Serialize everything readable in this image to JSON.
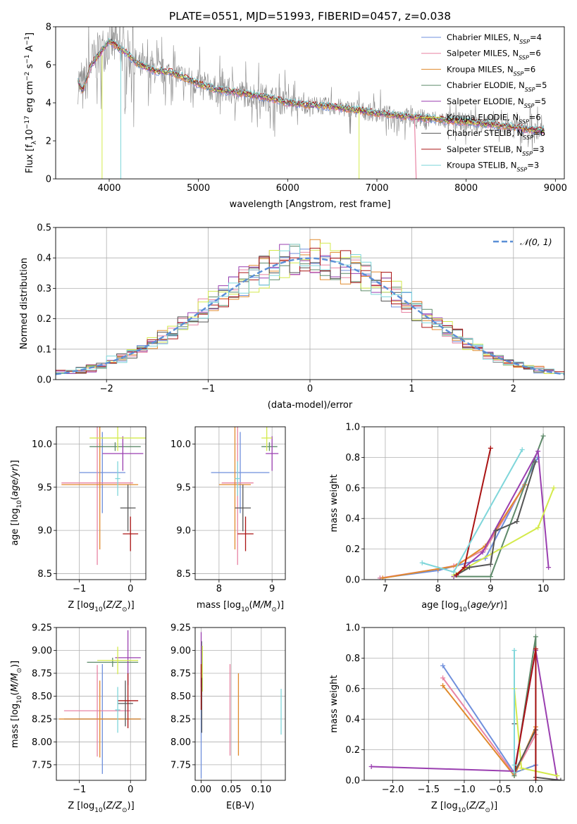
{
  "colors": {
    "chabrier_miles": "#6f8fdc",
    "salpeter_miles": "#e884a4",
    "kroupa_miles": "#e08a2c",
    "chabrier_elodie": "#5e8a6a",
    "salpeter_elodie": "#9a3fb0",
    "kroupa_elodie": "#d4ea4c",
    "chabrier_stelib": "#555555",
    "salpeter_stelib": "#aa1414",
    "kroupa_stelib": "#7fd6da",
    "data_grey": "#888888",
    "gaussian": "#5b8fd6"
  },
  "chart_data": [
    {
      "id": "spectrum",
      "type": "line",
      "title": "PLATE=0551, MJD=51993, FIBERID=0457, z=0.038",
      "xlabel": "wavelength [Angstrom, rest frame]",
      "ylabel": "Flux [f_λ10^-17 erg cm^-2 s^-1 A^-1]",
      "xlim": [
        3400,
        9100
      ],
      "ylim": [
        0,
        8
      ],
      "xticks": [
        "4000",
        "5000",
        "6000",
        "7000",
        "8000",
        "9000"
      ],
      "yticks": [
        "0",
        "2",
        "4",
        "6",
        "8"
      ],
      "grid": false,
      "legend_position": "top-right",
      "legend": [
        {
          "main": "Chabrier MILES, N",
          "sub": "SSP",
          "tail": "=4"
        },
        {
          "main": "Salpeter MILES, N",
          "sub": "SSP",
          "tail": "=6"
        },
        {
          "main": "Kroupa MILES, N",
          "sub": "SSP",
          "tail": "=6"
        },
        {
          "main": "Chabrier ELODIE, N",
          "sub": "SSP",
          "tail": "=5"
        },
        {
          "main": "Salpeter ELODIE, N",
          "sub": "SSP",
          "tail": "=5"
        },
        {
          "main": "Kroupa ELODIE, N",
          "sub": "SSP",
          "tail": "=6"
        },
        {
          "main": "Chabrier STELIB, N",
          "sub": "SSP",
          "tail": "=6"
        },
        {
          "main": "Salpeter STELIB, N",
          "sub": "SSP",
          "tail": "=3"
        },
        {
          "main": "Kroupa STELIB, N",
          "sub": "SSP",
          "tail": "=3"
        }
      ],
      "continuum": {
        "x": [
          3650,
          3700,
          3800,
          3900,
          4000,
          4100,
          4200,
          4300,
          4500,
          4700,
          5000,
          5200,
          5500,
          5800,
          6000,
          6200,
          6500,
          6800,
          7000,
          7300,
          7600,
          8000,
          8400,
          8700,
          8900
        ],
        "y": [
          5.2,
          4.6,
          6.0,
          6.6,
          7.3,
          6.9,
          6.6,
          6.1,
          5.7,
          5.6,
          5.0,
          4.7,
          4.5,
          4.25,
          4.0,
          3.9,
          3.8,
          3.6,
          3.45,
          3.3,
          3.15,
          3.0,
          2.8,
          2.6,
          2.5
        ]
      }
    },
    {
      "id": "residual_histogram",
      "type": "histogram",
      "xlabel": "(data-model)/error",
      "ylabel": "Normed distribution",
      "xlim": [
        -2.5,
        2.5
      ],
      "ylim": [
        0,
        0.5
      ],
      "xticks": [
        "−2",
        "−1",
        "0",
        "1",
        "2"
      ],
      "yticks": [
        "0.0",
        "0.1",
        "0.2",
        "0.3",
        "0.4",
        "0.5"
      ],
      "grid": true,
      "legend_position": "top-right",
      "legend": [
        "𝒩(0, 1)"
      ],
      "bin_width": 0.1
    },
    {
      "id": "age_vs_Z",
      "type": "errorbar",
      "xlabel": "Z [log10(Z/Z⊙)]",
      "ylabel": "age  [log10(age/yr)]",
      "xlim": [
        -1.45,
        0.3
      ],
      "ylim": [
        8.43,
        10.2
      ],
      "xticks": [
        "−1",
        "0"
      ],
      "yticks": [
        "8.5",
        "9.0",
        "9.5",
        "10.0"
      ],
      "grid": true,
      "points": [
        {
          "series": "chabrier_miles",
          "x": -0.55,
          "xerr": 0.45,
          "y": 9.67,
          "yerr": 0.47
        },
        {
          "series": "salpeter_miles",
          "x": -0.65,
          "xerr": 0.7,
          "y": 9.55,
          "yerr": 0.95
        },
        {
          "series": "kroupa_miles",
          "x": -0.6,
          "xerr": 0.75,
          "y": 9.53,
          "yerr": 0.75
        },
        {
          "series": "chabrier_elodie",
          "x": -0.3,
          "xerr": 0.5,
          "y": 9.97,
          "yerr": 0.05
        },
        {
          "series": "salpeter_elodie",
          "x": -0.15,
          "xerr": 0.4,
          "y": 9.89,
          "yerr": 0.2
        },
        {
          "series": "kroupa_elodie",
          "x": -0.25,
          "xerr": 0.55,
          "y": 10.07,
          "yerr": 0.15
        },
        {
          "series": "chabrier_stelib",
          "x": -0.05,
          "xerr": 0.15,
          "y": 9.26,
          "yerr": 0.27
        },
        {
          "series": "salpeter_stelib",
          "x": 0.0,
          "xerr": 0.15,
          "y": 8.96,
          "yerr": 0.2
        },
        {
          "series": "kroupa_stelib",
          "x": -0.25,
          "xerr": 0.05,
          "y": 9.6,
          "yerr": 0.2
        }
      ]
    },
    {
      "id": "age_vs_mass",
      "type": "errorbar",
      "xlabel": "mass [log10(M/M⊙)]",
      "ylabel": "",
      "xlim": [
        7.55,
        9.25
      ],
      "ylim": [
        8.43,
        10.2
      ],
      "xticks": [
        "8",
        "9"
      ],
      "yticks": [
        "8.5",
        "9.0",
        "9.5",
        "10.0"
      ],
      "grid": true,
      "points": [
        {
          "series": "chabrier_miles",
          "x": 8.4,
          "xerr": 0.55,
          "y": 9.67,
          "yerr": 0.47
        },
        {
          "series": "salpeter_miles",
          "x": 8.35,
          "xerr": 0.3,
          "y": 9.55,
          "yerr": 0.95
        },
        {
          "series": "kroupa_miles",
          "x": 8.3,
          "xerr": 0.3,
          "y": 9.53,
          "yerr": 0.75
        },
        {
          "series": "chabrier_elodie",
          "x": 8.95,
          "xerr": 0.15,
          "y": 9.97,
          "yerr": 0.05
        },
        {
          "series": "salpeter_elodie",
          "x": 9.0,
          "xerr": 0.12,
          "y": 9.89,
          "yerr": 0.2
        },
        {
          "series": "kroupa_elodie",
          "x": 8.9,
          "xerr": 0.1,
          "y": 10.07,
          "yerr": 0.15
        },
        {
          "series": "chabrier_stelib",
          "x": 8.45,
          "xerr": 0.15,
          "y": 9.26,
          "yerr": 0.27
        },
        {
          "series": "salpeter_stelib",
          "x": 8.5,
          "xerr": 0.15,
          "y": 8.96,
          "yerr": 0.2
        },
        {
          "series": "kroupa_stelib",
          "x": 8.35,
          "xerr": 0.05,
          "y": 9.6,
          "yerr": 0.2
        }
      ]
    },
    {
      "id": "mass_weight_vs_age",
      "type": "line",
      "xlabel": "age  [log10(age/yr)]",
      "ylabel": "mass weight",
      "xlim": [
        6.6,
        10.4
      ],
      "ylim": [
        0,
        1.0
      ],
      "xticks": [
        "7",
        "8",
        "9",
        "10"
      ],
      "yticks": [
        "0.0",
        "0.2",
        "0.4",
        "0.6",
        "0.8",
        "1.0"
      ],
      "grid": true,
      "series": [
        {
          "key": "chabrier_miles",
          "x": [
            6.9,
            8.0,
            8.9,
            9.9
          ],
          "y": [
            0.01,
            0.06,
            0.14,
            0.8
          ]
        },
        {
          "key": "salpeter_miles",
          "x": [
            6.9,
            8.0,
            8.3,
            8.9,
            9.65
          ],
          "y": [
            0.01,
            0.07,
            0.09,
            0.2,
            0.62
          ]
        },
        {
          "key": "kroupa_miles",
          "x": [
            6.95,
            8.0,
            8.35,
            8.9,
            9.65
          ],
          "y": [
            0.01,
            0.07,
            0.09,
            0.22,
            0.62
          ]
        },
        {
          "key": "chabrier_elodie",
          "x": [
            8.3,
            9.0,
            10.0
          ],
          "y": [
            0.02,
            0.02,
            0.94
          ]
        },
        {
          "key": "salpeter_elodie",
          "x": [
            8.3,
            8.85,
            9.9,
            10.1
          ],
          "y": [
            0.02,
            0.18,
            0.84,
            0.08
          ]
        },
        {
          "key": "kroupa_elodie",
          "x": [
            8.3,
            9.9,
            10.2
          ],
          "y": [
            0.03,
            0.34,
            0.6
          ]
        },
        {
          "key": "chabrier_stelib",
          "x": [
            8.35,
            8.6,
            9.0,
            9.1,
            9.5,
            9.85
          ],
          "y": [
            0.03,
            0.08,
            0.1,
            0.32,
            0.38,
            0.77
          ]
        },
        {
          "key": "salpeter_stelib",
          "x": [
            8.35,
            8.5,
            9.0
          ],
          "y": [
            0.03,
            0.08,
            0.86
          ]
        },
        {
          "key": "kroupa_stelib",
          "x": [
            7.7,
            8.3,
            9.6
          ],
          "y": [
            0.11,
            0.05,
            0.85
          ]
        }
      ]
    },
    {
      "id": "mass_vs_Z",
      "type": "errorbar",
      "xlabel": "Z [log10(Z/Z⊙)]",
      "ylabel": "mass [log10(M/M⊙)]",
      "xlim": [
        -1.45,
        0.3
      ],
      "ylim": [
        7.58,
        9.25
      ],
      "xticks": [
        "−1",
        "0"
      ],
      "yticks": [
        "7.75",
        "8.00",
        "8.25",
        "8.50",
        "8.75",
        "9.00",
        "9.25"
      ],
      "grid": true,
      "points": [
        {
          "series": "chabrier_miles",
          "x": -0.55,
          "xerr": 0.75,
          "y": 8.25,
          "yerr": 0.6
        },
        {
          "series": "salpeter_miles",
          "x": -0.65,
          "xerr": 0.65,
          "y": 8.34,
          "yerr": 0.5
        },
        {
          "series": "kroupa_miles",
          "x": -0.6,
          "xerr": 0.8,
          "y": 8.25,
          "yerr": 0.42
        },
        {
          "series": "chabrier_elodie",
          "x": -0.35,
          "xerr": 0.5,
          "y": 8.87,
          "yerr": 0.05
        },
        {
          "series": "salpeter_elodie",
          "x": -0.05,
          "xerr": 0.25,
          "y": 8.92,
          "yerr": 0.3
        },
        {
          "series": "kroupa_elodie",
          "x": -0.25,
          "xerr": 0.4,
          "y": 8.89,
          "yerr": 0.15
        },
        {
          "series": "chabrier_stelib",
          "x": -0.1,
          "xerr": 0.15,
          "y": 8.42,
          "yerr": 0.25
        },
        {
          "series": "salpeter_stelib",
          "x": -0.05,
          "xerr": 0.2,
          "y": 8.45,
          "yerr": 0.3
        },
        {
          "series": "kroupa_stelib",
          "x": -0.25,
          "xerr": 0.05,
          "y": 8.35,
          "yerr": 0.25
        }
      ]
    },
    {
      "id": "mass_vs_EBV",
      "type": "errorbar",
      "xlabel": "E(B-V)",
      "ylabel": "",
      "xlim": [
        -0.01,
        0.14
      ],
      "ylim": [
        7.58,
        9.25
      ],
      "xticks": [
        "0.00",
        "0.05",
        "0.10"
      ],
      "yticks": [
        "7.75",
        "8.00",
        "8.25",
        "8.50",
        "8.75",
        "9.00",
        "9.25"
      ],
      "grid": true,
      "points": [
        {
          "series": "chabrier_miles",
          "x": 0.0,
          "xerr": 0,
          "y": 8.15,
          "yerr": 0.55
        },
        {
          "series": "salpeter_miles",
          "x": 0.048,
          "xerr": 0,
          "y": 8.35,
          "yerr": 0.5
        },
        {
          "series": "kroupa_miles",
          "x": 0.062,
          "xerr": 0,
          "y": 8.3,
          "yerr": 0.45
        },
        {
          "series": "chabrier_elodie",
          "x": 0.001,
          "xerr": 0,
          "y": 8.8,
          "yerr": 0.3
        },
        {
          "series": "salpeter_elodie",
          "x": 0.0,
          "xerr": 0,
          "y": 8.9,
          "yerr": 0.3
        },
        {
          "series": "kroupa_elodie",
          "x": 0.002,
          "xerr": 0,
          "y": 8.8,
          "yerr": 0.25
        },
        {
          "series": "chabrier_stelib",
          "x": 0.001,
          "xerr": 0,
          "y": 8.4,
          "yerr": 0.3
        },
        {
          "series": "salpeter_stelib",
          "x": 0.0,
          "xerr": 0,
          "y": 8.6,
          "yerr": 0.25
        },
        {
          "series": "kroupa_stelib",
          "x": 0.133,
          "xerr": 0,
          "y": 8.33,
          "yerr": 0.25
        }
      ]
    },
    {
      "id": "mass_weight_vs_Z",
      "type": "line",
      "xlabel": "Z [log10(Z/Z⊙)]",
      "ylabel": "mass weight",
      "xlim": [
        -2.4,
        0.4
      ],
      "ylim": [
        0,
        1.0
      ],
      "xticks": [
        "−2.0",
        "−1.5",
        "−1.0",
        "−0.5",
        "0.0"
      ],
      "yticks": [
        "0.0",
        "0.2",
        "0.4",
        "0.6",
        "0.8",
        "1.0"
      ],
      "grid": true,
      "series": [
        {
          "key": "chabrier_miles",
          "x": [
            -1.3,
            -0.3,
            0.0
          ],
          "y": [
            0.75,
            0.05,
            0.1
          ]
        },
        {
          "key": "salpeter_miles",
          "x": [
            -1.3,
            -0.3,
            0.0
          ],
          "y": [
            0.67,
            0.04,
            0.3
          ]
        },
        {
          "key": "kroupa_miles",
          "x": [
            -1.3,
            -0.3,
            0.0
          ],
          "y": [
            0.62,
            0.03,
            0.35
          ]
        },
        {
          "key": "chabrier_elodie",
          "x": [
            -0.3,
            0.0,
            0.0
          ],
          "y": [
            0.03,
            0.94,
            0.0
          ]
        },
        {
          "key": "salpeter_elodie",
          "x": [
            -2.3,
            -0.3,
            0.0,
            0.3
          ],
          "y": [
            0.09,
            0.06,
            0.85,
            0.0
          ]
        },
        {
          "key": "kroupa_elodie",
          "x": [
            -0.3,
            -0.2,
            0.3
          ],
          "y": [
            0.6,
            0.08,
            0.03
          ]
        },
        {
          "key": "chabrier_stelib",
          "x": [
            -0.3,
            -0.3,
            0.0,
            0.0,
            0.35
          ],
          "y": [
            0.37,
            0.05,
            0.33,
            0.02,
            0.0
          ]
        },
        {
          "key": "salpeter_stelib",
          "x": [
            -0.3,
            0.0,
            0.0
          ],
          "y": [
            0.05,
            0.86,
            0.0
          ]
        },
        {
          "key": "kroupa_stelib",
          "x": [
            -0.3,
            -0.3,
            -0.3
          ],
          "y": [
            0.85,
            0.05,
            0.1
          ]
        }
      ]
    }
  ]
}
